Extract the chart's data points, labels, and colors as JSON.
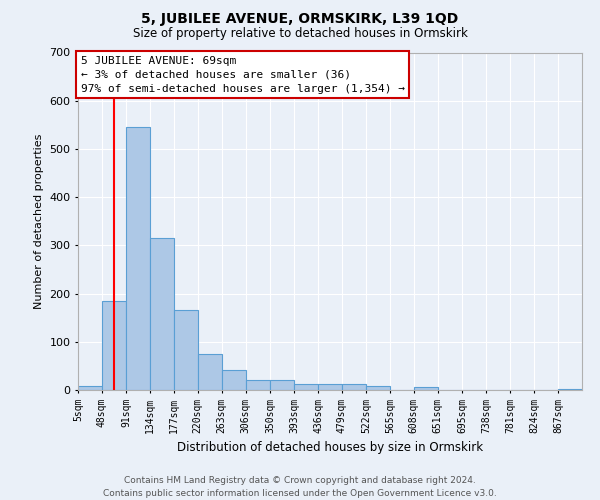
{
  "title": "5, JUBILEE AVENUE, ORMSKIRK, L39 1QD",
  "subtitle": "Size of property relative to detached houses in Ormskirk",
  "xlabel": "Distribution of detached houses by size in Ormskirk",
  "ylabel": "Number of detached properties",
  "bin_labels": [
    "5sqm",
    "48sqm",
    "91sqm",
    "134sqm",
    "177sqm",
    "220sqm",
    "263sqm",
    "306sqm",
    "350sqm",
    "393sqm",
    "436sqm",
    "479sqm",
    "522sqm",
    "565sqm",
    "608sqm",
    "651sqm",
    "695sqm",
    "738sqm",
    "781sqm",
    "824sqm",
    "867sqm"
  ],
  "bin_edges": [
    5,
    48,
    91,
    134,
    177,
    220,
    263,
    306,
    350,
    393,
    436,
    479,
    522,
    565,
    608,
    651,
    695,
    738,
    781,
    824,
    867,
    910
  ],
  "bar_heights": [
    8,
    185,
    545,
    315,
    165,
    75,
    42,
    20,
    20,
    12,
    13,
    13,
    9,
    0,
    7,
    0,
    0,
    0,
    0,
    0,
    2
  ],
  "bar_color": "#adc8e6",
  "bar_edge_color": "#5a9fd4",
  "red_line_x": 69,
  "annotation_line1": "5 JUBILEE AVENUE: 69sqm",
  "annotation_line2": "← 3% of detached houses are smaller (36)",
  "annotation_line3": "97% of semi-detached houses are larger (1,354) →",
  "annotation_box_color": "#ffffff",
  "annotation_box_edge_color": "#cc0000",
  "ylim": [
    0,
    700
  ],
  "yticks": [
    0,
    100,
    200,
    300,
    400,
    500,
    600,
    700
  ],
  "bg_color": "#eaf0f8",
  "grid_color": "#ffffff",
  "footer_line1": "Contains HM Land Registry data © Crown copyright and database right 2024.",
  "footer_line2": "Contains public sector information licensed under the Open Government Licence v3.0."
}
